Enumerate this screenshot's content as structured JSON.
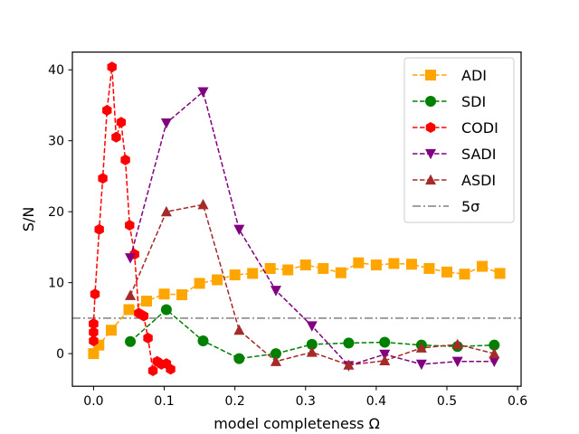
{
  "chart_data": {
    "type": "line",
    "title": "",
    "xlabel": "model completeness Ω",
    "ylabel": "S/N",
    "xlim": [
      -0.03,
      0.605
    ],
    "ylim": [
      -4.6,
      42.5
    ],
    "xticks": [
      0.0,
      0.1,
      0.2,
      0.3,
      0.4,
      0.5,
      0.6
    ],
    "xtick_labels": [
      "0.0",
      "0.1",
      "0.2",
      "0.3",
      "0.4",
      "0.5",
      "0.6"
    ],
    "yticks": [
      0,
      10,
      20,
      30,
      40
    ],
    "ytick_labels": [
      "0",
      "10",
      "20",
      "30",
      "40"
    ],
    "legend_position": "top-right",
    "series": [
      {
        "name": "ADI",
        "color": "#ffa500",
        "marker": "square",
        "x": [
          0.0,
          0.0075,
          0.025,
          0.05,
          0.075,
          0.1,
          0.125,
          0.15,
          0.175,
          0.2,
          0.225,
          0.25,
          0.275,
          0.3,
          0.325,
          0.35,
          0.375,
          0.4,
          0.425,
          0.45,
          0.475,
          0.5,
          0.525,
          0.55,
          0.575
        ],
        "y": [
          0.0,
          1.2,
          3.3,
          6.2,
          7.4,
          8.4,
          8.3,
          9.9,
          10.4,
          11.1,
          11.3,
          12.0,
          11.8,
          12.5,
          12.0,
          11.4,
          12.8,
          12.5,
          12.7,
          12.6,
          12.0,
          11.5,
          11.2,
          12.3,
          11.3
        ]
      },
      {
        "name": "SDI",
        "color": "#008000",
        "marker": "circle",
        "x": [
          0.052,
          0.103,
          0.155,
          0.206,
          0.258,
          0.309,
          0.361,
          0.412,
          0.464,
          0.515,
          0.567
        ],
        "y": [
          1.7,
          6.2,
          1.8,
          -0.7,
          0.0,
          1.3,
          1.5,
          1.6,
          1.2,
          1.0,
          1.2
        ]
      },
      {
        "name": "CODI",
        "color": "#ff0000",
        "marker": "hexagon",
        "x": [
          0.0,
          0.0,
          0.0,
          0.0,
          0.002,
          0.008,
          0.013,
          0.019,
          0.026,
          0.032,
          0.039,
          0.045,
          0.051,
          0.058,
          0.064,
          0.071,
          0.077,
          0.084,
          0.09,
          0.096,
          0.103,
          0.109
        ],
        "y": [
          1.8,
          3.0,
          4.2,
          4.2,
          8.4,
          17.5,
          24.7,
          34.3,
          40.4,
          30.5,
          32.6,
          27.3,
          18.1,
          14.0,
          5.7,
          5.3,
          2.2,
          -2.4,
          -1.1,
          -1.5,
          -1.4,
          -2.2
        ]
      },
      {
        "name": "SADI",
        "color": "#800080",
        "marker": "triangle-down",
        "x": [
          0.052,
          0.103,
          0.155,
          0.206,
          0.258,
          0.309,
          0.361,
          0.412,
          0.464,
          0.515,
          0.567
        ],
        "y": [
          13.5,
          32.5,
          36.9,
          17.5,
          8.9,
          3.9,
          -1.7,
          -0.1,
          -1.5,
          -1.1,
          -1.1
        ]
      },
      {
        "name": "ASDI",
        "color": "#a52a2a",
        "marker": "triangle-up",
        "x": [
          0.052,
          0.103,
          0.155,
          0.206,
          0.258,
          0.309,
          0.361,
          0.412,
          0.464,
          0.515,
          0.567
        ],
        "y": [
          8.2,
          20.0,
          21.0,
          3.3,
          -1.1,
          0.2,
          -1.6,
          -1.0,
          0.8,
          1.3,
          0.0
        ]
      }
    ],
    "reference_lines": [
      {
        "name": "5σ",
        "orientation": "horizontal",
        "y": 5.0,
        "color": "#808080",
        "style": "dash-dot"
      }
    ],
    "legend": [
      {
        "label": "ADI"
      },
      {
        "label": "SDI"
      },
      {
        "label": "CODI"
      },
      {
        "label": "SADI"
      },
      {
        "label": "ASDI"
      },
      {
        "label": "5σ"
      }
    ]
  }
}
